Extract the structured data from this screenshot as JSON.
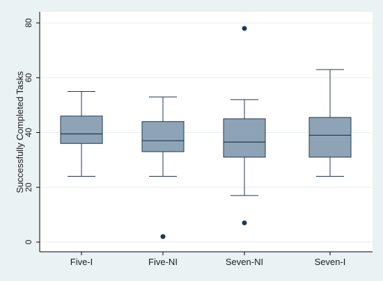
{
  "chart_data": {
    "type": "boxplot",
    "ylabel": "Successfully Completed Tasks",
    "xlabel": "",
    "ylim": [
      0,
      80
    ],
    "yticks": [
      0,
      20,
      40,
      60,
      80
    ],
    "grid": true,
    "colors": {
      "frame_background": "#eaf2f3",
      "plot_background": "#ffffff",
      "box_fill": "#8ea3b6",
      "box_stroke": "#1f3850",
      "median": "#1f3850",
      "whisker": "#1f3850",
      "outlier": "#1a3a5c",
      "grid": "#e6eef0"
    },
    "categories": [
      "Five-I",
      "Five-NI",
      "Seven-NI",
      "Seven-I"
    ],
    "boxes": [
      {
        "category": "Five-I",
        "whisker_low": 24,
        "q1": 36,
        "median": 39.5,
        "q3": 46,
        "whisker_high": 55,
        "outliers": []
      },
      {
        "category": "Five-NI",
        "whisker_low": 24,
        "q1": 33,
        "median": 37,
        "q3": 44,
        "whisker_high": 53,
        "outliers": [
          2
        ]
      },
      {
        "category": "Seven-NI",
        "whisker_low": 17,
        "q1": 31,
        "median": 36.5,
        "q3": 45,
        "whisker_high": 52,
        "outliers": [
          78,
          7
        ]
      },
      {
        "category": "Seven-I",
        "whisker_low": 24,
        "q1": 31,
        "median": 39,
        "q3": 45.5,
        "whisker_high": 63,
        "outliers": []
      }
    ]
  }
}
